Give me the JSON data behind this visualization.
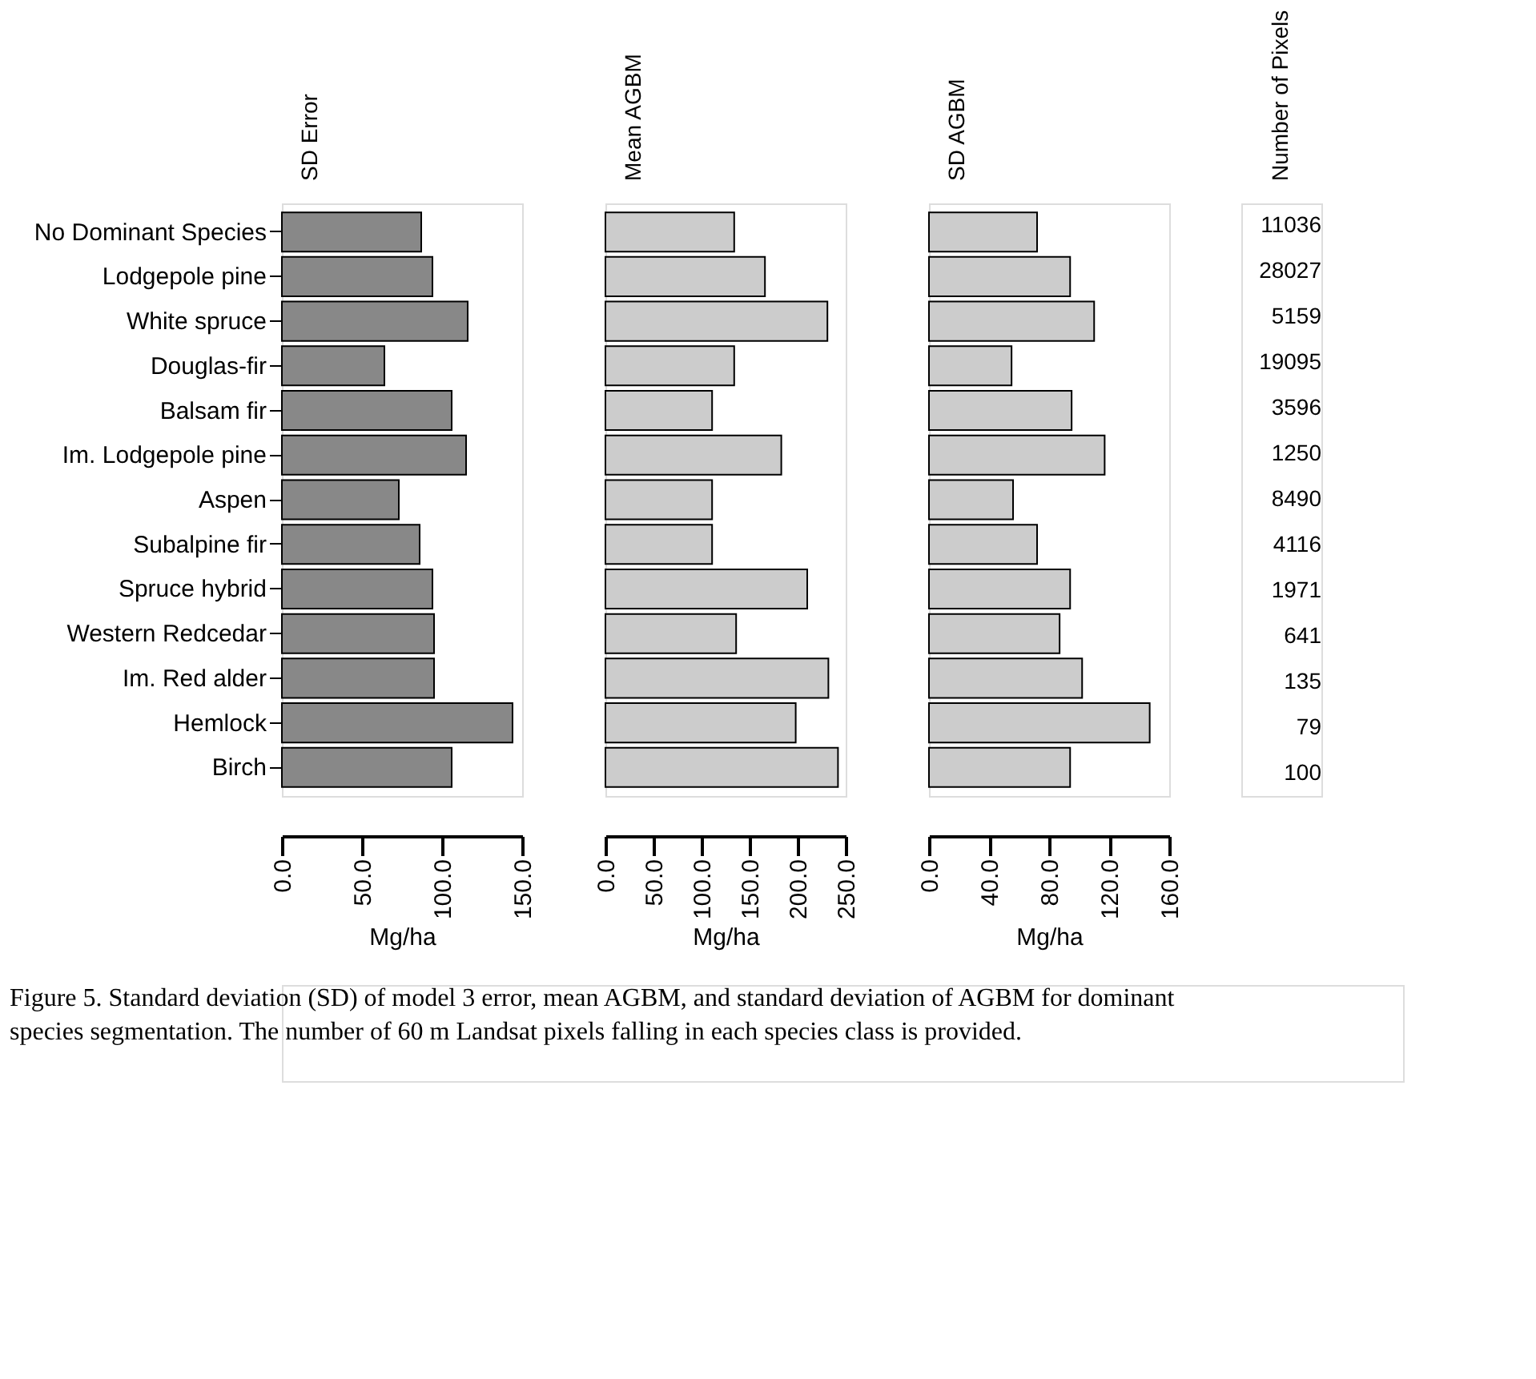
{
  "chart_data": [
    {
      "type": "bar",
      "orientation": "horizontal",
      "title": "SD Error",
      "xlabel": "Mg/ha",
      "categories": [
        "No Dominant Species",
        "Lodgepole pine",
        "White spruce",
        "Douglas-fir",
        "Balsam fir",
        "Im. Lodgepole pine",
        "Aspen",
        "Subalpine fir",
        "Spruce hybrid",
        "Western Redcedar",
        "Im. Red alder",
        "Hemlock",
        "Birch"
      ],
      "values": [
        87,
        94,
        116,
        64,
        106,
        115,
        73,
        86,
        94,
        95,
        95,
        144,
        106
      ],
      "color": "#888888",
      "xlim": [
        0,
        150
      ],
      "xticks": [
        {
          "value": 0,
          "label": "0.0"
        },
        {
          "value": 50,
          "label": "50.0"
        },
        {
          "value": 100,
          "label": "100.0"
        },
        {
          "value": 150,
          "label": "150.0"
        }
      ],
      "grid": false,
      "annotations": [
        "Figure 5. Standard deviation (SD) of model 3 error, mean AGBM, and standard deviation of AGBM for dominant species segmentation. The number of 60 m Landsat pixels falling in each species class is provided."
      ]
    },
    {
      "type": "bar",
      "orientation": "horizontal",
      "title": "Mean AGBM",
      "xlabel": "Mg/ha",
      "categories": [
        null,
        null,
        null,
        null,
        null,
        null,
        null,
        null,
        null,
        null,
        null,
        null,
        null
      ],
      "values": [
        134,
        166,
        231,
        134,
        111,
        183,
        111,
        111,
        210,
        136,
        232,
        198,
        242
      ],
      "color": "#cccccc",
      "xlim": [
        0,
        250
      ],
      "xticks": [
        {
          "value": 0,
          "label": "0.0"
        },
        {
          "value": 50,
          "label": "50.0"
        },
        {
          "value": 100,
          "label": "100.0"
        },
        {
          "value": 150,
          "label": "150.0"
        },
        {
          "value": 200,
          "label": "200.0"
        },
        {
          "value": 250,
          "label": "250.0"
        }
      ],
      "grid": false,
      "tick_labels": "x"
    },
    {
      "type": "bar",
      "orientation": "horizontal",
      "title": "SD AGBM",
      "xlabel": "Mg/ha",
      "categories": [
        null,
        null,
        null,
        null,
        null,
        null,
        null,
        null,
        null,
        null,
        null,
        null,
        null
      ],
      "values": [
        72,
        94,
        110,
        55,
        95,
        117,
        56,
        72,
        94,
        87,
        102,
        147,
        94
      ],
      "color": "#cccccc",
      "xlim": [
        0,
        160
      ],
      "xticks": [
        {
          "value": 0,
          "label": "0.0"
        },
        {
          "value": 40,
          "label": "40.0"
        },
        {
          "value": 80,
          "label": "80.0"
        },
        {
          "value": 120,
          "label": "120.0"
        },
        {
          "value": 160,
          "label": "160.0"
        }
      ],
      "grid": false,
      "tick_labels": "x"
    },
    {
      "type": "other",
      "title": "Number of Pixels",
      "values": [
        11036,
        28027,
        5159,
        19095,
        3596,
        1250,
        8490,
        4116,
        1971,
        641,
        135,
        79,
        100
      ],
      "data_labels": true
    }
  ]
}
